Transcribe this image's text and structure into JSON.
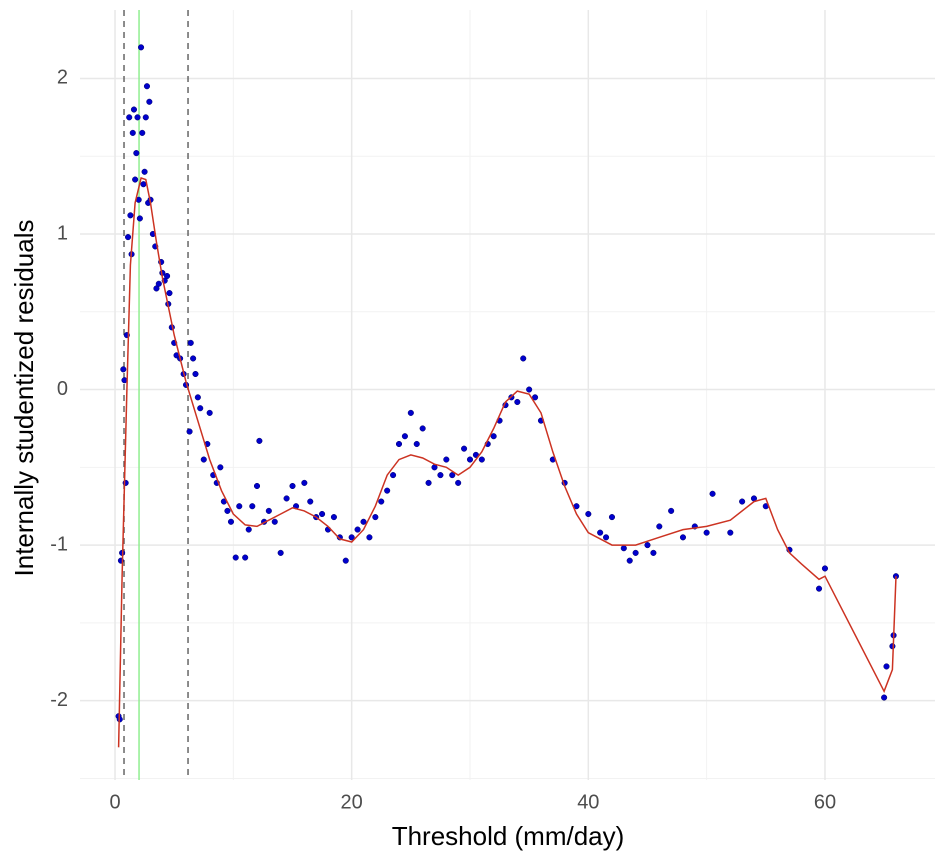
{
  "chart_data": {
    "type": "scatter",
    "x_label": "Threshold (mm/day)",
    "y_label": "Internally studentized residuals",
    "xlim": [
      -2.96,
      69.3
    ],
    "ylim": [
      -2.51,
      2.44
    ],
    "xticks": [
      0,
      20,
      40,
      60
    ],
    "yticks": [
      -2,
      -1,
      0,
      1,
      2
    ],
    "grid": true,
    "points": {
      "color": "#0000cc",
      "x": [
        0.3,
        0.4,
        0.5,
        0.6,
        0.7,
        0.8,
        0.9,
        1.0,
        1.1,
        1.2,
        1.3,
        1.4,
        1.5,
        1.6,
        1.7,
        1.8,
        1.9,
        2.0,
        2.1,
        2.2,
        2.3,
        2.4,
        2.5,
        2.6,
        2.7,
        2.8,
        2.9,
        3.0,
        3.2,
        3.4,
        3.5,
        3.7,
        3.9,
        4.0,
        4.2,
        4.4,
        4.5,
        4.6,
        4.8,
        5.0,
        5.2,
        5.5,
        5.8,
        6.0,
        6.3,
        6.4,
        6.6,
        6.8,
        7.0,
        7.2,
        7.5,
        7.8,
        8.0,
        8.3,
        8.6,
        8.9,
        9.2,
        9.5,
        9.8,
        10.2,
        10.5,
        11,
        11.3,
        11.6,
        12,
        12.2,
        12.6,
        13,
        13.5,
        14,
        14.5,
        15,
        15.3,
        16,
        16.5,
        17,
        17.5,
        18,
        18.5,
        19,
        19.5,
        20,
        20.5,
        21,
        21.5,
        22,
        22.5,
        23,
        23.5,
        24,
        24.5,
        25,
        25.5,
        26,
        26.5,
        27,
        27.5,
        28,
        28.5,
        29,
        29.5,
        30,
        30.5,
        31,
        31.5,
        32,
        32.5,
        33,
        33.5,
        34,
        34.5,
        35,
        35.5,
        36,
        37,
        38,
        39,
        40,
        41,
        41.5,
        42,
        43,
        43.5,
        44,
        45,
        45.5,
        46,
        47,
        48,
        49,
        50,
        50.5,
        52,
        53,
        54,
        55,
        57,
        59.5,
        60,
        65,
        65.2,
        65.7,
        65.8,
        66
      ],
      "y": [
        -2.1,
        -2.12,
        -1.1,
        -1.05,
        0.13,
        0.06,
        -0.6,
        0.35,
        0.98,
        1.75,
        1.12,
        0.87,
        1.65,
        1.8,
        1.35,
        1.52,
        1.75,
        1.22,
        1.1,
        2.2,
        1.65,
        1.32,
        1.4,
        1.75,
        1.95,
        1.2,
        1.85,
        1.22,
        1.0,
        0.92,
        0.65,
        0.68,
        0.82,
        0.75,
        0.7,
        0.73,
        0.55,
        0.62,
        0.4,
        0.3,
        0.22,
        0.2,
        0.1,
        0.03,
        -0.27,
        0.3,
        0.2,
        0.1,
        -0.05,
        -0.12,
        -0.45,
        -0.35,
        -0.15,
        -0.55,
        -0.6,
        -0.5,
        -0.72,
        -0.78,
        -0.85,
        -1.08,
        -0.75,
        -1.08,
        -0.9,
        -0.75,
        -0.62,
        -0.33,
        -0.85,
        -0.78,
        -0.85,
        -1.05,
        -0.7,
        -0.62,
        -0.75,
        -0.6,
        -0.72,
        -0.82,
        -0.8,
        -0.9,
        -0.82,
        -0.95,
        -1.1,
        -0.95,
        -0.9,
        -0.85,
        -0.95,
        -0.82,
        -0.72,
        -0.65,
        -0.55,
        -0.35,
        -0.3,
        -0.15,
        -0.35,
        -0.25,
        -0.6,
        -0.5,
        -0.55,
        -0.45,
        -0.55,
        -0.6,
        -0.38,
        -0.45,
        -0.42,
        -0.45,
        -0.35,
        -0.3,
        -0.2,
        -0.1,
        -0.05,
        -0.08,
        0.2,
        0.0,
        -0.05,
        -0.2,
        -0.45,
        -0.6,
        -0.75,
        -0.8,
        -0.92,
        -0.95,
        -0.82,
        -1.02,
        -1.1,
        -1.05,
        -1.0,
        -1.05,
        -0.88,
        -0.78,
        -0.95,
        -0.88,
        -0.92,
        -0.67,
        -0.92,
        -0.72,
        -0.7,
        -0.75,
        -1.03,
        -1.28,
        -1.15,
        -1.98,
        -1.78,
        -1.65,
        -1.58,
        -1.2
      ]
    },
    "smooth": {
      "color": "#cc3322",
      "x": [
        0.3,
        0.6,
        1.0,
        1.3,
        1.7,
        2.2,
        2.6,
        3.0,
        3.5,
        4,
        5,
        6,
        7,
        8,
        9,
        10,
        11,
        12,
        13,
        14,
        15,
        16,
        17,
        18,
        19,
        20,
        21,
        22,
        23,
        24,
        25,
        26,
        27,
        28,
        29,
        30,
        31,
        32,
        33,
        34,
        35,
        36,
        37,
        38,
        39,
        40,
        42,
        44,
        46,
        48,
        50,
        52,
        54,
        55,
        56,
        57,
        58,
        59.5,
        60,
        65,
        65.7,
        66
      ],
      "y": [
        -2.3,
        -1.2,
        0.0,
        0.8,
        1.2,
        1.36,
        1.35,
        1.2,
        0.95,
        0.72,
        0.35,
        0.05,
        -0.2,
        -0.45,
        -0.65,
        -0.8,
        -0.87,
        -0.88,
        -0.84,
        -0.8,
        -0.76,
        -0.78,
        -0.82,
        -0.88,
        -0.96,
        -0.98,
        -0.9,
        -0.75,
        -0.55,
        -0.45,
        -0.42,
        -0.44,
        -0.48,
        -0.5,
        -0.55,
        -0.5,
        -0.4,
        -0.25,
        -0.08,
        -0.01,
        -0.03,
        -0.15,
        -0.4,
        -0.62,
        -0.8,
        -0.92,
        -1.0,
        -1.0,
        -0.95,
        -0.9,
        -0.88,
        -0.84,
        -0.72,
        -0.7,
        -0.9,
        -1.05,
        -1.12,
        -1.22,
        -1.2,
        -1.94,
        -1.8,
        -1.2
      ]
    },
    "vlines": [
      {
        "x": 0.76,
        "color": "#666666",
        "dash": true
      },
      {
        "x": 2.03,
        "color": "#90ee90",
        "dash": false
      },
      {
        "x": 6.17,
        "color": "#666666",
        "dash": true
      }
    ]
  }
}
